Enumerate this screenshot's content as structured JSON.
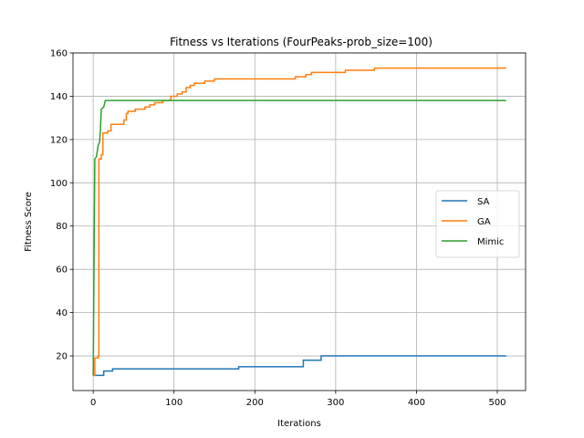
{
  "chart_data": {
    "type": "line",
    "title": "Fitness vs Iterations (FourPeaks-prob_size=100)",
    "xlabel": "Iterations",
    "ylabel": "Fitness Score",
    "xlim": [
      -25,
      535
    ],
    "ylim": [
      4,
      160
    ],
    "xticks": [
      0,
      100,
      200,
      300,
      400,
      500
    ],
    "yticks": [
      20,
      40,
      60,
      80,
      100,
      120,
      140,
      160
    ],
    "grid": true,
    "legend_position": "center-right",
    "series": [
      {
        "name": "SA",
        "color": "#1f77b4",
        "step": true,
        "points": [
          [
            0,
            11
          ],
          [
            13,
            11
          ],
          [
            13,
            13
          ],
          [
            24,
            13
          ],
          [
            24,
            14
          ],
          [
            180,
            14
          ],
          [
            180,
            15
          ],
          [
            260,
            15
          ],
          [
            260,
            18
          ],
          [
            282,
            18
          ],
          [
            282,
            20
          ],
          [
            511,
            20
          ]
        ]
      },
      {
        "name": "GA",
        "color": "#ff7f0e",
        "step": true,
        "points": [
          [
            0,
            11
          ],
          [
            2,
            11
          ],
          [
            2,
            19
          ],
          [
            6,
            19
          ],
          [
            6,
            20
          ],
          [
            7,
            20
          ],
          [
            7,
            111
          ],
          [
            10,
            111
          ],
          [
            10,
            113
          ],
          [
            12,
            113
          ],
          [
            12,
            123
          ],
          [
            18,
            123
          ],
          [
            18,
            124
          ],
          [
            22,
            124
          ],
          [
            22,
            127
          ],
          [
            38,
            127
          ],
          [
            38,
            129
          ],
          [
            41,
            129
          ],
          [
            41,
            132
          ],
          [
            43,
            132
          ],
          [
            43,
            133
          ],
          [
            52,
            133
          ],
          [
            52,
            134
          ],
          [
            64,
            134
          ],
          [
            64,
            135
          ],
          [
            70,
            135
          ],
          [
            70,
            136
          ],
          [
            76,
            136
          ],
          [
            76,
            137
          ],
          [
            86,
            137
          ],
          [
            86,
            138
          ],
          [
            96,
            138
          ],
          [
            96,
            140
          ],
          [
            104,
            140
          ],
          [
            104,
            141
          ],
          [
            110,
            141
          ],
          [
            110,
            142
          ],
          [
            115,
            142
          ],
          [
            115,
            144
          ],
          [
            120,
            144
          ],
          [
            120,
            145
          ],
          [
            125,
            145
          ],
          [
            125,
            146
          ],
          [
            138,
            146
          ],
          [
            138,
            147
          ],
          [
            150,
            147
          ],
          [
            150,
            148
          ],
          [
            250,
            148
          ],
          [
            250,
            149
          ],
          [
            263,
            149
          ],
          [
            263,
            150
          ],
          [
            270,
            150
          ],
          [
            270,
            151
          ],
          [
            312,
            151
          ],
          [
            312,
            152
          ],
          [
            348,
            152
          ],
          [
            348,
            153
          ],
          [
            511,
            153
          ]
        ]
      },
      {
        "name": "Mimic",
        "color": "#2ca02c",
        "step": false,
        "points": [
          [
            0,
            11
          ],
          [
            2,
            111
          ],
          [
            4,
            112
          ],
          [
            6,
            117
          ],
          [
            7,
            118
          ],
          [
            8,
            119
          ],
          [
            9,
            125
          ],
          [
            10,
            134
          ],
          [
            13,
            135
          ],
          [
            15,
            138
          ],
          [
            511,
            138
          ]
        ]
      }
    ]
  }
}
